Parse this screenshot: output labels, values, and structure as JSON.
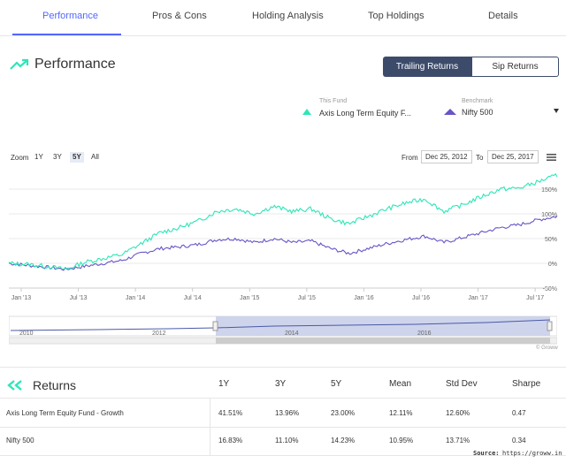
{
  "tabs": [
    "Performance",
    "Pros & Cons",
    "Holding Analysis",
    "Top Holdings",
    "Details"
  ],
  "performance": {
    "title": "Performance",
    "toggle_on": "Trailing Returns",
    "toggle_off": "Sip Returns",
    "fund_label": "This Fund",
    "fund_name": "Axis Long Term Equity F...",
    "benchmark_label": "Benchmark",
    "benchmark_name": "Nifty 500",
    "zoom_label": "Zoom",
    "zoom_options": [
      "1Y",
      "3Y",
      "5Y",
      "All"
    ],
    "zoom_selected": "5Y",
    "from_label": "From",
    "from_date": "Dec 25, 2012",
    "to_label": "To",
    "to_date": "Dec 25, 2017",
    "credit": "© Groww"
  },
  "colors": {
    "accent": "#5367ff",
    "fund": "#2ee6b8",
    "benchmark": "#6656c7",
    "dark_button": "#3d4b6b"
  },
  "icons": {
    "performance": "trend-up-icon",
    "returns": "double-arrow-left-icon",
    "menu": "hamburger-icon",
    "dropdown": "caret-down-icon"
  },
  "chart_data": {
    "type": "line",
    "x_ticks": [
      "Jan '13",
      "Jul '13",
      "Jan '14",
      "Jul '14",
      "Jan '15",
      "Jul '15",
      "Jan '16",
      "Jul '16",
      "Jan '17",
      "Jul '17"
    ],
    "y_ticks": [
      "150%",
      "100%",
      "50%",
      "0%",
      "-50%"
    ],
    "ylim": [
      -50,
      175
    ],
    "navigator_years": [
      "2010",
      "2012",
      "2014",
      "2016"
    ],
    "series": [
      {
        "name": "Axis Long Term Equity F...",
        "x": [
          "Dec '12",
          "Mar '13",
          "Jun '13",
          "Aug '13",
          "Oct '13",
          "Dec '13",
          "Mar '14",
          "May '14",
          "Jul '14",
          "Sep '14",
          "Nov '14",
          "Jan '15",
          "Mar '15",
          "May '15",
          "Jul '15",
          "Aug '15",
          "Oct '15",
          "Dec '15",
          "Feb '16",
          "Apr '16",
          "Jun '16",
          "Aug '16",
          "Oct '16",
          "Dec '16",
          "Feb '17",
          "Apr '17",
          "Jun '17",
          "Aug '17",
          "Oct '17",
          "Dec '17"
        ],
        "values": [
          0,
          -2,
          -6,
          -12,
          2,
          10,
          18,
          40,
          62,
          72,
          85,
          105,
          110,
          100,
          115,
          105,
          110,
          90,
          80,
          95,
          110,
          122,
          130,
          105,
          118,
          135,
          150,
          152,
          165,
          178
        ]
      },
      {
        "name": "Nifty 500",
        "x": [
          "Dec '12",
          "Mar '13",
          "Jun '13",
          "Aug '13",
          "Oct '13",
          "Dec '13",
          "Mar '14",
          "May '14",
          "Jul '14",
          "Sep '14",
          "Nov '14",
          "Jan '15",
          "Mar '15",
          "May '15",
          "Jul '15",
          "Aug '15",
          "Oct '15",
          "Dec '15",
          "Feb '16",
          "Apr '16",
          "Jun '16",
          "Aug '16",
          "Oct '16",
          "Dec '16",
          "Feb '17",
          "Apr '17",
          "Jun '17",
          "Aug '17",
          "Oct '17",
          "Dec '17"
        ],
        "values": [
          0,
          -4,
          -8,
          -12,
          -6,
          0,
          6,
          20,
          30,
          33,
          38,
          48,
          50,
          42,
          50,
          42,
          45,
          30,
          20,
          30,
          40,
          48,
          55,
          42,
          52,
          62,
          72,
          78,
          88,
          95
        ]
      }
    ]
  },
  "returns": {
    "title": "Returns",
    "headers": [
      "1Y",
      "3Y",
      "5Y",
      "Mean",
      "Std Dev",
      "Sharpe"
    ],
    "rows": [
      {
        "name": "Axis Long Term Equity Fund - Growth",
        "values": [
          "41.51%",
          "13.96%",
          "23.00%",
          "12.11%",
          "12.60%",
          "0.47"
        ]
      },
      {
        "name": "Nifty 500",
        "values": [
          "16.83%",
          "11.10%",
          "14.23%",
          "10.95%",
          "13.71%",
          "0.34"
        ]
      }
    ],
    "source_label": "Source:",
    "source_url": "https://groww.in"
  }
}
